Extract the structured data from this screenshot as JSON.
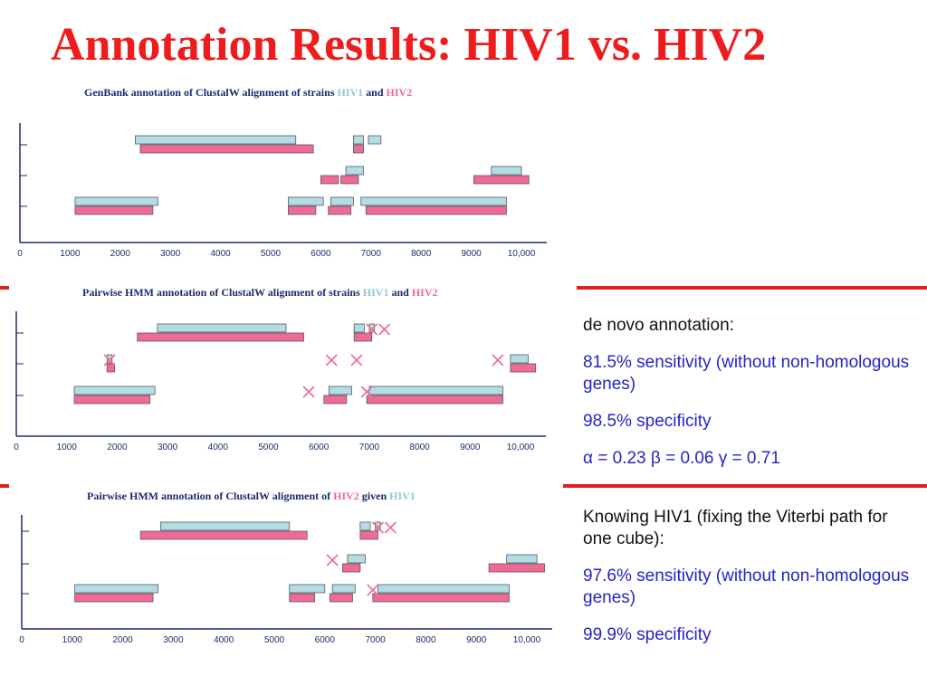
{
  "title": "Annotation Results: HIV1 vs. HIV2",
  "colors": {
    "hiv1": "#b3dde2",
    "hiv2": "#f06a93",
    "title": "#ee1c1c",
    "rule": "#e21f1f",
    "mismatch": "#f06a93",
    "text_blue": "#2424c9"
  },
  "chart_data": [
    {
      "type": "bar",
      "title_parts": [
        {
          "text": "GenBank annotation of ClustalW alignment of strains ",
          "series": ""
        },
        {
          "text": "HIV1",
          "series": "HIV1"
        },
        {
          "text": " and ",
          "series": ""
        },
        {
          "text": "HIV2",
          "series": "HIV2"
        }
      ],
      "x_ticks": [
        "0",
        "1000",
        "2000",
        "3000",
        "4000",
        "5000",
        "6000",
        "7000",
        "8000",
        "9000",
        "10,000"
      ],
      "xlim": [
        0,
        10000
      ],
      "series": [
        {
          "name": "HIV1",
          "color": "#b3dde2",
          "segments": [
            {
              "row": 1,
              "start": 2300,
              "end": 5500
            },
            {
              "row": 1,
              "start": 6650,
              "end": 6850
            },
            {
              "row": 1,
              "start": 6950,
              "end": 7200
            },
            {
              "row": 2,
              "start": 6500,
              "end": 6850
            },
            {
              "row": 2,
              "start": 9400,
              "end": 10000
            },
            {
              "row": 3,
              "start": 1100,
              "end": 2750
            },
            {
              "row": 3,
              "start": 5350,
              "end": 6050
            },
            {
              "row": 3,
              "start": 6200,
              "end": 6650
            },
            {
              "row": 3,
              "start": 6800,
              "end": 9700
            }
          ]
        },
        {
          "name": "HIV2",
          "color": "#f06a93",
          "segments": [
            {
              "row": 1,
              "start": 2400,
              "end": 5850
            },
            {
              "row": 1,
              "start": 6650,
              "end": 6850
            },
            {
              "row": 2,
              "start": 6000,
              "end": 6350
            },
            {
              "row": 2,
              "start": 6400,
              "end": 6750
            },
            {
              "row": 2,
              "start": 9050,
              "end": 10150
            },
            {
              "row": 3,
              "start": 1100,
              "end": 2650
            },
            {
              "row": 3,
              "start": 5350,
              "end": 5900
            },
            {
              "row": 3,
              "start": 6150,
              "end": 6600
            },
            {
              "row": 3,
              "start": 6900,
              "end": 9700
            }
          ]
        }
      ],
      "mismatch_marks": []
    },
    {
      "type": "bar",
      "title_parts": [
        {
          "text": "Pairwise HMM annotation of ClustalW alignment of strains ",
          "series": ""
        },
        {
          "text": "HIV1",
          "series": "HIV1"
        },
        {
          "text": " and ",
          "series": ""
        },
        {
          "text": "HIV2",
          "series": "HIV2"
        }
      ],
      "x_ticks": [
        "0",
        "1000",
        "2000",
        "3000",
        "4000",
        "5000",
        "6000",
        "7000",
        "8000",
        "9000",
        "10,000"
      ],
      "xlim": [
        0,
        10000
      ],
      "series": [
        {
          "name": "HIV1",
          "color": "#b3dde2",
          "segments": [
            {
              "row": 1,
              "start": 2800,
              "end": 5350
            },
            {
              "row": 1,
              "start": 6700,
              "end": 6900
            },
            {
              "row": 1,
              "start": 7000,
              "end": 7100
            },
            {
              "row": 2,
              "start": 1800,
              "end": 1900
            },
            {
              "row": 2,
              "start": 9800,
              "end": 10150
            },
            {
              "row": 3,
              "start": 1150,
              "end": 2750
            },
            {
              "row": 3,
              "start": 6200,
              "end": 6650
            },
            {
              "row": 3,
              "start": 7000,
              "end": 9650
            }
          ]
        },
        {
          "name": "HIV2",
          "color": "#f06a93",
          "segments": [
            {
              "row": 1,
              "start": 2400,
              "end": 5700
            },
            {
              "row": 1,
              "start": 6700,
              "end": 7050
            },
            {
              "row": 2,
              "start": 1800,
              "end": 1950
            },
            {
              "row": 2,
              "start": 9800,
              "end": 10300
            },
            {
              "row": 3,
              "start": 1150,
              "end": 2650
            },
            {
              "row": 3,
              "start": 6100,
              "end": 6550
            },
            {
              "row": 3,
              "start": 6950,
              "end": 9650
            }
          ]
        }
      ],
      "mismatch_marks": [
        {
          "row": 1,
          "x": 7050
        },
        {
          "row": 1,
          "x": 7300
        },
        {
          "row": 2,
          "x": 1850
        },
        {
          "row": 2,
          "x": 6250
        },
        {
          "row": 2,
          "x": 6750
        },
        {
          "row": 2,
          "x": 9550
        },
        {
          "row": 3,
          "x": 5800
        },
        {
          "row": 3,
          "x": 6950
        }
      ]
    },
    {
      "type": "bar",
      "title_parts": [
        {
          "text": "Pairwise HMM annotation of ClustalW alignment of ",
          "series": ""
        },
        {
          "text": "HIV2",
          "series": "HIV2"
        },
        {
          "text": " given ",
          "series": ""
        },
        {
          "text": "HIV1",
          "series": "HIV1"
        }
      ],
      "x_ticks": [
        "0",
        "1000",
        "2000",
        "3000",
        "4000",
        "5000",
        "6000",
        "7000",
        "8000",
        "9000",
        "10,000"
      ],
      "xlim": [
        0,
        10000
      ],
      "series": [
        {
          "name": "HIV1",
          "color": "#b3dde2",
          "segments": [
            {
              "row": 1,
              "start": 2750,
              "end": 5300
            },
            {
              "row": 1,
              "start": 6700,
              "end": 6900
            },
            {
              "row": 1,
              "start": 7000,
              "end": 7100
            },
            {
              "row": 2,
              "start": 6450,
              "end": 6800
            },
            {
              "row": 2,
              "start": 9600,
              "end": 10200
            },
            {
              "row": 3,
              "start": 1050,
              "end": 2700
            },
            {
              "row": 3,
              "start": 5300,
              "end": 6000
            },
            {
              "row": 3,
              "start": 6150,
              "end": 6600
            },
            {
              "row": 3,
              "start": 7050,
              "end": 9650
            }
          ]
        },
        {
          "name": "HIV2",
          "color": "#f06a93",
          "segments": [
            {
              "row": 1,
              "start": 2350,
              "end": 5650
            },
            {
              "row": 1,
              "start": 6700,
              "end": 7050
            },
            {
              "row": 2,
              "start": 6350,
              "end": 6700
            },
            {
              "row": 2,
              "start": 9250,
              "end": 10350
            },
            {
              "row": 3,
              "start": 1050,
              "end": 2600
            },
            {
              "row": 3,
              "start": 5300,
              "end": 5800
            },
            {
              "row": 3,
              "start": 6100,
              "end": 6550
            },
            {
              "row": 3,
              "start": 6950,
              "end": 9650
            }
          ]
        }
      ],
      "mismatch_marks": [
        {
          "row": 1,
          "x": 7050
        },
        {
          "row": 1,
          "x": 7300
        },
        {
          "row": 2,
          "x": 6150
        },
        {
          "row": 3,
          "x": 6950
        }
      ]
    }
  ],
  "stats_top": {
    "heading": "de novo annotation:",
    "sensitivity": "81.5% sensitivity (without non-homologous genes)",
    "specificity": "98.5% specificity",
    "alpha_symbol": "α",
    "alpha_value": " = 0.23 ",
    "beta_symbol": "β",
    "beta_value": " = 0.06 ",
    "gamma_symbol": "γ",
    "gamma_value": " = 0.71"
  },
  "stats_bottom": {
    "heading": "Knowing HIV1 (fixing the Viterbi path for one cube):",
    "sensitivity": "97.6% sensitivity (without non-homologous genes)",
    "specificity": "99.9% specificity"
  }
}
